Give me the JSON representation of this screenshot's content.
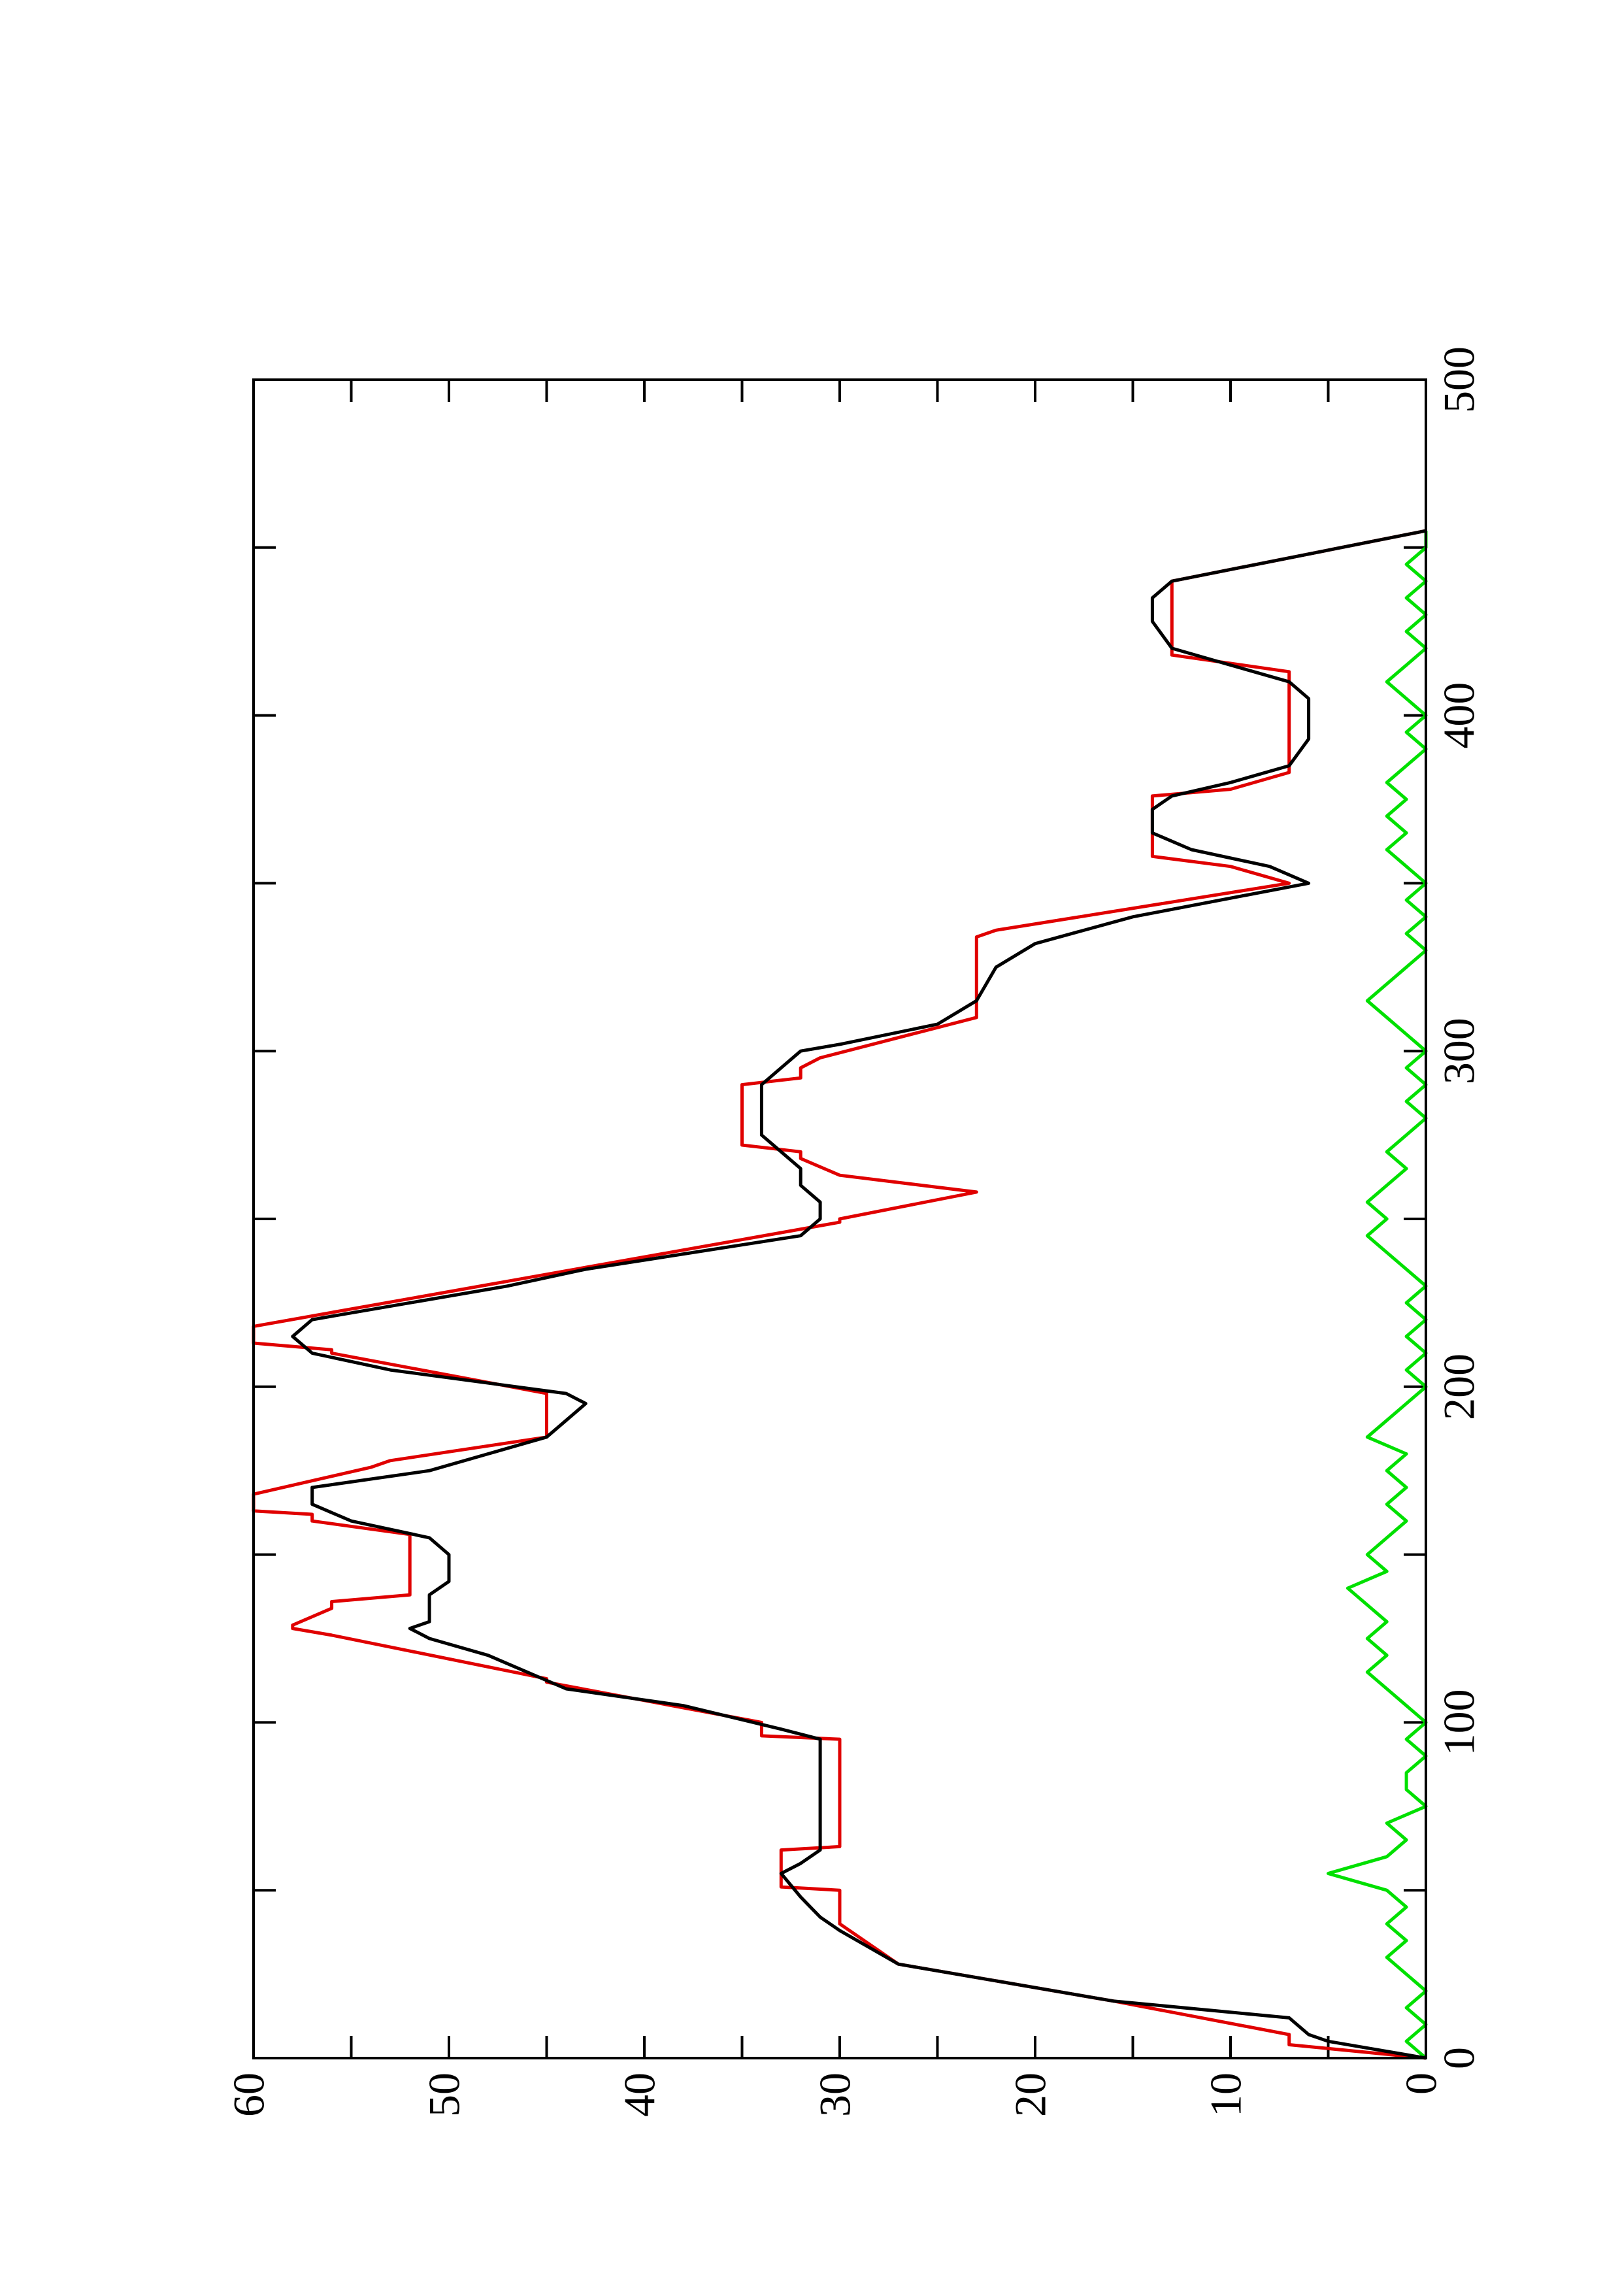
{
  "chart_data": {
    "type": "line",
    "xlim": [
      0,
      500
    ],
    "xticks": [
      0,
      100,
      200,
      300,
      400,
      500
    ],
    "xminorticks": [
      50,
      150,
      250,
      350,
      450
    ],
    "ylim": [
      0,
      60
    ],
    "yticks": [
      0,
      10,
      20,
      30,
      40,
      50,
      60
    ],
    "yminorticks": [
      5,
      15,
      25,
      35,
      45,
      55
    ],
    "rotated": true,
    "series": [
      {
        "color": "#000000",
        "x": [
          0,
          5,
          7,
          12,
          17,
          28,
          38,
          42,
          48,
          55,
          58,
          62,
          70,
          80,
          95,
          98,
          105,
          110,
          120,
          125,
          128,
          130,
          138,
          142,
          150,
          155,
          160,
          165,
          170,
          175,
          180,
          185,
          190,
          195,
          198,
          205,
          210,
          215,
          220,
          230,
          235,
          245,
          250,
          255,
          260,
          265,
          270,
          275,
          290,
          295,
          300,
          302,
          308,
          315,
          325,
          332,
          340,
          350,
          355,
          360,
          365,
          372,
          376,
          380,
          385,
          393,
          400,
          405,
          410,
          415,
          420,
          428,
          435,
          440,
          455
        ],
        "values": [
          0,
          5,
          6,
          7,
          16,
          27,
          30,
          31,
          32,
          33,
          32,
          31,
          31,
          31,
          31,
          33,
          38,
          44,
          48,
          51,
          52,
          51,
          51,
          50,
          50,
          51,
          55,
          57,
          57,
          51,
          48,
          45,
          44,
          43,
          44,
          53,
          57,
          58,
          57,
          47,
          43,
          32,
          31,
          31,
          32,
          32,
          33,
          34,
          34,
          33,
          32,
          30,
          25,
          23,
          22,
          20,
          15,
          6,
          8,
          12,
          14,
          14,
          13,
          10,
          7,
          6,
          6,
          6,
          7,
          10,
          13,
          14,
          14,
          13,
          0
        ]
      },
      {
        "color": "#e00000",
        "x": [
          0,
          4,
          7,
          17,
          18,
          27,
          28,
          40,
          50,
          51,
          62,
          63,
          95,
          96,
          100,
          112,
          113,
          126,
          128,
          129,
          134,
          136,
          138,
          156,
          160,
          162,
          163,
          168,
          176,
          178,
          185,
          198,
          210,
          211,
          213,
          218,
          249,
          250,
          258,
          263,
          268,
          270,
          272,
          290,
          292,
          295,
          298,
          310,
          334,
          336,
          350,
          355,
          358,
          376,
          378,
          383,
          413,
          418,
          440,
          455
        ],
        "values": [
          0,
          7,
          7,
          16,
          17,
          26,
          27,
          30,
          30,
          33,
          33,
          30,
          30,
          34,
          34,
          45,
          45,
          56,
          58,
          58,
          56,
          56,
          52,
          52,
          57,
          57,
          60,
          60,
          54,
          53,
          45,
          45,
          56,
          56,
          60,
          60,
          30,
          30,
          23,
          30,
          32,
          32,
          35,
          35,
          32,
          32,
          31,
          23,
          23,
          22,
          7,
          10,
          14,
          14,
          10,
          7,
          7,
          13,
          13,
          0
        ]
      },
      {
        "color": "#00e000",
        "x": [
          0,
          5,
          10,
          15,
          20,
          25,
          30,
          35,
          40,
          45,
          50,
          55,
          60,
          65,
          70,
          75,
          80,
          85,
          90,
          95,
          100,
          105,
          110,
          115,
          120,
          125,
          130,
          135,
          140,
          145,
          150,
          155,
          160,
          165,
          170,
          175,
          180,
          185,
          190,
          195,
          200,
          205,
          210,
          215,
          220,
          225,
          230,
          235,
          240,
          245,
          250,
          255,
          260,
          265,
          270,
          275,
          280,
          285,
          290,
          295,
          300,
          305,
          310,
          315,
          320,
          325,
          330,
          335,
          340,
          345,
          350,
          355,
          360,
          365,
          370,
          375,
          380,
          385,
          390,
          395,
          400,
          405,
          410,
          415,
          420,
          425,
          430,
          435,
          440,
          445,
          450,
          455
        ],
        "values": [
          0,
          1,
          0,
          1,
          0,
          1,
          2,
          1,
          2,
          1,
          2,
          5,
          2,
          1,
          2,
          0,
          1,
          1,
          0,
          1,
          0,
          1,
          2,
          3,
          2,
          3,
          2,
          3,
          4,
          2,
          3,
          2,
          1,
          2,
          1,
          2,
          1,
          3,
          2,
          1,
          0,
          1,
          0,
          1,
          0,
          1,
          0,
          1,
          2,
          3,
          2,
          3,
          2,
          1,
          2,
          1,
          0,
          1,
          0,
          1,
          0,
          1,
          2,
          3,
          2,
          1,
          0,
          1,
          0,
          1,
          0,
          1,
          2,
          1,
          2,
          1,
          2,
          1,
          0,
          1,
          0,
          1,
          2,
          1,
          0,
          1,
          0,
          1,
          0,
          1,
          0,
          0
        ]
      }
    ]
  }
}
